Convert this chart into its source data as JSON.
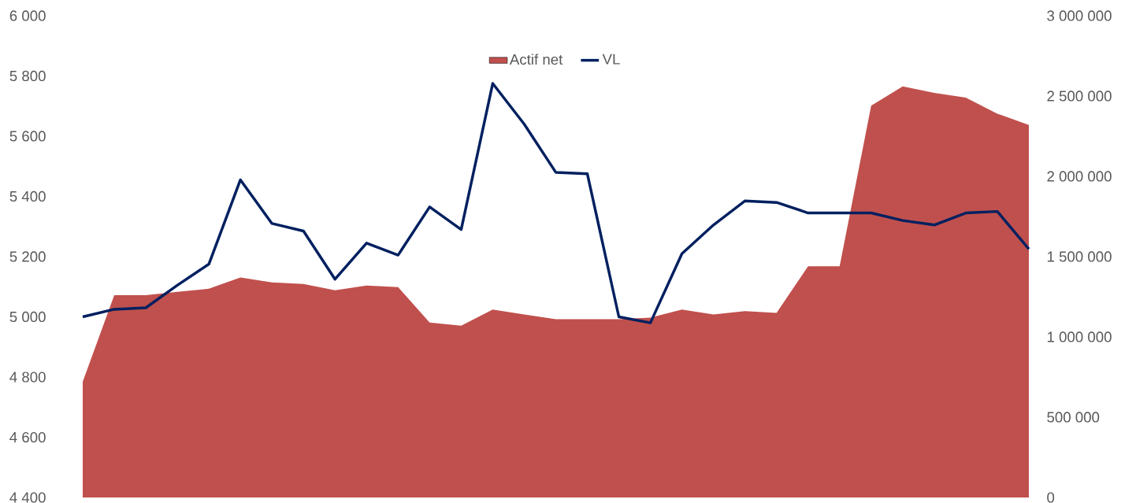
{
  "chart_data": {
    "type": "line",
    "categories": [
      null,
      null,
      null,
      null,
      null,
      null,
      null,
      null,
      null,
      null,
      null,
      null,
      null,
      null,
      null,
      null,
      null,
      null,
      null,
      null,
      null,
      null,
      null,
      null,
      null,
      null,
      null,
      null,
      null,
      null,
      null
    ],
    "series": [
      {
        "name": "Actif net",
        "type": "area",
        "axis": "y2",
        "color": "#c0504d",
        "values": [
          720000,
          1260000,
          1260000,
          1280000,
          1300000,
          1370000,
          1340000,
          1330000,
          1290000,
          1320000,
          1310000,
          1090000,
          1070000,
          1170000,
          1140000,
          1110000,
          1110000,
          1110000,
          1120000,
          1170000,
          1140000,
          1160000,
          1150000,
          1440000,
          1440000,
          2440000,
          2560000,
          2520000,
          2490000,
          2390000,
          2320000
        ]
      },
      {
        "name": "VL",
        "color": "#002060",
        "values": [
          5000,
          5025,
          5030,
          5105,
          5175,
          5455,
          5310,
          5285,
          5125,
          5245,
          5205,
          5365,
          5290,
          5775,
          5640,
          5480,
          5475,
          5000,
          4980,
          5210,
          5305,
          5385,
          5380,
          5345,
          5345,
          5345,
          5320,
          5305,
          5345,
          5350,
          5225
        ]
      }
    ],
    "ylim": [
      4400,
      6000
    ],
    "yticks": [
      {
        "value": 4400,
        "label": "4 400"
      },
      {
        "value": 4600,
        "label": "4 600"
      },
      {
        "value": 4800,
        "label": "4 800"
      },
      {
        "value": 5000,
        "label": "5 000"
      },
      {
        "value": 5200,
        "label": "5 200"
      },
      {
        "value": 5400,
        "label": "5 400"
      },
      {
        "value": 5600,
        "label": "5 600"
      },
      {
        "value": 5800,
        "label": "5 800"
      },
      {
        "value": 6000,
        "label": "6 000"
      }
    ],
    "y2lim": [
      0,
      3000000
    ],
    "y2ticks": [
      0,
      {
        "value": 500000,
        "label": "500 000"
      },
      {
        "value": 1000000,
        "label": "1 000 000"
      },
      {
        "value": 1500000,
        "label": "1 500 000"
      },
      {
        "value": 2000000,
        "label": "2 000 000"
      },
      {
        "value": 2500000,
        "label": "2 500 000"
      },
      {
        "value": 3000000,
        "label": "3 000 000"
      }
    ],
    "legend": "top"
  }
}
